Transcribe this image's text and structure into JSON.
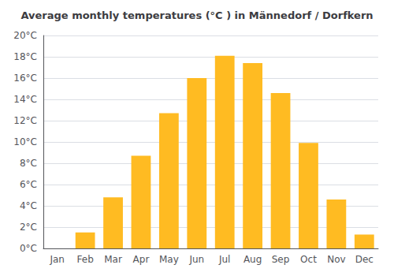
{
  "chart_data": {
    "type": "bar",
    "title": "Average monthly temperatures (°C ) in Männedorf / Dorfkern",
    "categories": [
      "Jan",
      "Feb",
      "Mar",
      "Apr",
      "May",
      "Jun",
      "Jul",
      "Aug",
      "Sep",
      "Oct",
      "Nov",
      "Dec"
    ],
    "values": [
      0.0,
      1.5,
      4.8,
      8.7,
      12.7,
      16.0,
      18.1,
      17.4,
      14.6,
      9.9,
      4.6,
      1.3
    ],
    "color": "#FFBB22",
    "ylim": [
      0,
      20
    ],
    "yticks": [
      {
        "value": 0,
        "label": "0°C"
      },
      {
        "value": 2,
        "label": "2°C"
      },
      {
        "value": 4,
        "label": "4°C"
      },
      {
        "value": 6,
        "label": "6°C"
      },
      {
        "value": 8,
        "label": "8°C"
      },
      {
        "value": 10,
        "label": "10°C"
      },
      {
        "value": 12,
        "label": "12°C"
      },
      {
        "value": 14,
        "label": "14°C"
      },
      {
        "value": 16,
        "label": "16°C"
      },
      {
        "value": 18,
        "label": "18°C"
      },
      {
        "value": 20,
        "label": "20°C"
      }
    ],
    "grid": true
  }
}
